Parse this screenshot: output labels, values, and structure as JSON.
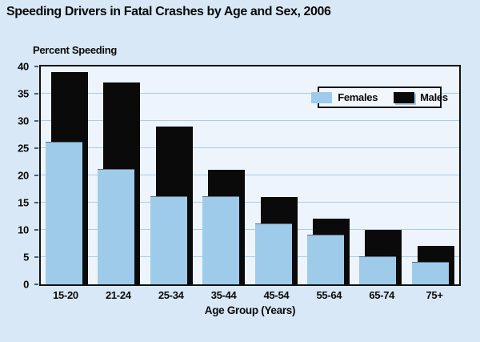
{
  "title": "Speeding Drivers in Fatal Crashes by Age and Sex, 2006",
  "chart_data": {
    "type": "bar",
    "bar_style": "overlapping (Males bar drawn behind, offset right; Females bar in front)",
    "categories": [
      "15-20",
      "21-24",
      "25-34",
      "35-44",
      "45-54",
      "55-64",
      "65-74",
      "75+"
    ],
    "series": [
      {
        "name": "Females",
        "color": "#9ecbea",
        "values": [
          26,
          21,
          16,
          16,
          11,
          9,
          5,
          4
        ]
      },
      {
        "name": "Males",
        "color": "#0a0a0a",
        "values": [
          39,
          37,
          29,
          21,
          16,
          12,
          10,
          7
        ]
      }
    ],
    "title": "Speeding Drivers in Fatal Crashes by Age and Sex, 2006",
    "xlabel": "Age Group (Years)",
    "ylabel": "Percent Speeding",
    "ylim": [
      0,
      40
    ],
    "y_ticks": [
      0,
      5,
      10,
      15,
      20,
      25,
      30,
      35,
      40
    ],
    "grid": true,
    "legend_position": "top-right inside plot"
  },
  "colors": {
    "page_background": "#d9e8f6",
    "plot_background": "#edf4fb",
    "gridline": "#a9cde6",
    "females_bar": "#9ecbea",
    "males_bar": "#0a0a0a",
    "axis_border": "#111111"
  }
}
